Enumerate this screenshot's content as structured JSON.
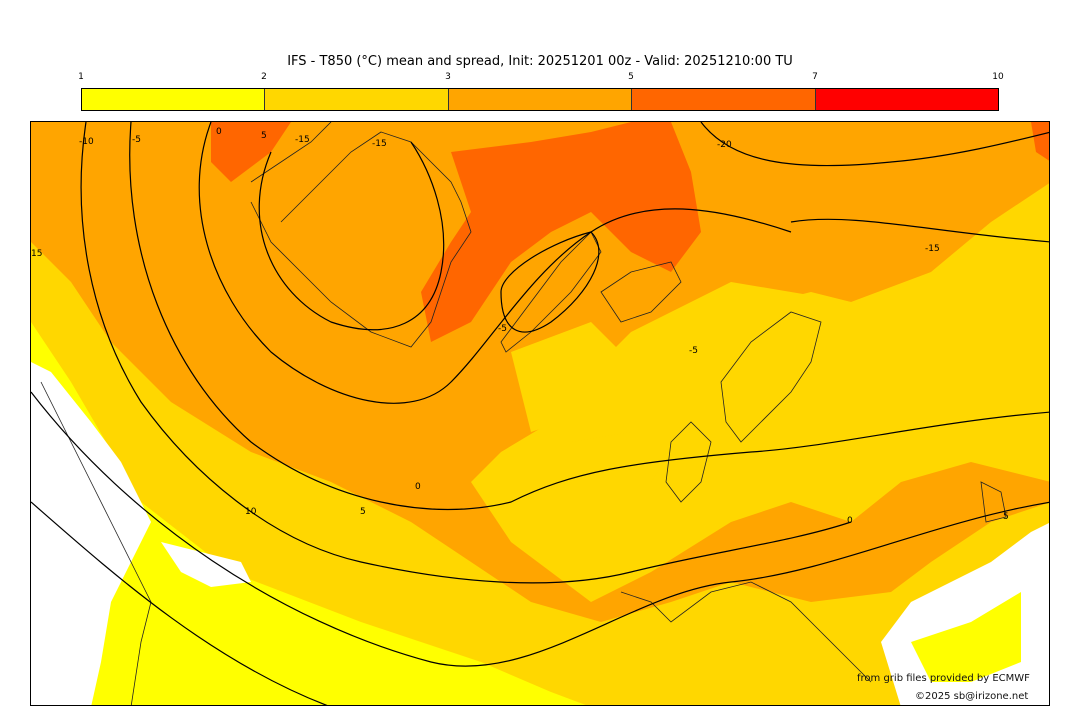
{
  "title": "IFS - T850 (°C) mean and spread, Init: 20251201 00z - Valid: 20251210:00 TU",
  "colorbar": {
    "ticks": [
      "1",
      "2",
      "3",
      "5",
      "7",
      "10"
    ],
    "colors": [
      "#ffff00",
      "#ffd700",
      "#ffa500",
      "#ff6600",
      "#ff0000"
    ]
  },
  "contour_labels": [
    "-10",
    "-5",
    "0",
    "5",
    "-15",
    "-15",
    "-20",
    "-15",
    "15",
    "-5",
    "-5",
    "0",
    "5",
    "10",
    "0",
    "5"
  ],
  "credits": {
    "line1": "from grib files provided by ECMWF",
    "line2": "©2025 sb@irizone.net"
  }
}
